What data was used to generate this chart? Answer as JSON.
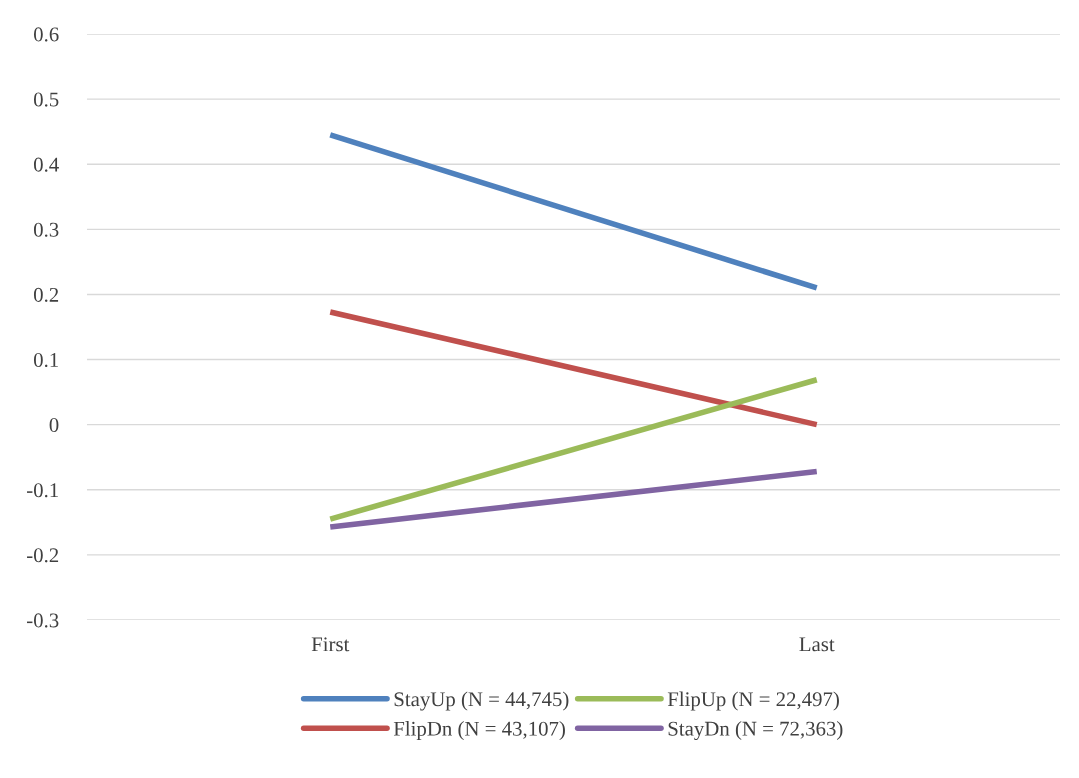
{
  "chart_data": {
    "type": "line",
    "categories": [
      "First",
      "Last"
    ],
    "series": [
      {
        "name": "StayUp (N = 44,745)",
        "color": "#4f81bd",
        "values": [
          0.445,
          0.21
        ]
      },
      {
        "name": "FlipDn (N = 43,107)",
        "color": "#c0504d",
        "values": [
          0.173,
          0.0
        ]
      },
      {
        "name": "FlipUp (N = 22,497)",
        "color": "#9bbb59",
        "values": [
          -0.145,
          0.069
        ]
      },
      {
        "name": "StayDn (N = 72,363)",
        "color": "#8064a2",
        "values": [
          -0.157,
          -0.072
        ]
      }
    ],
    "ylim": [
      -0.3,
      0.6
    ],
    "yticks": [
      -0.3,
      -0.2,
      -0.1,
      0,
      0.1,
      0.2,
      0.3,
      0.4,
      0.5,
      0.6
    ],
    "grid": "y",
    "legend": "bottom",
    "marker": "none",
    "line_style": "solid"
  }
}
